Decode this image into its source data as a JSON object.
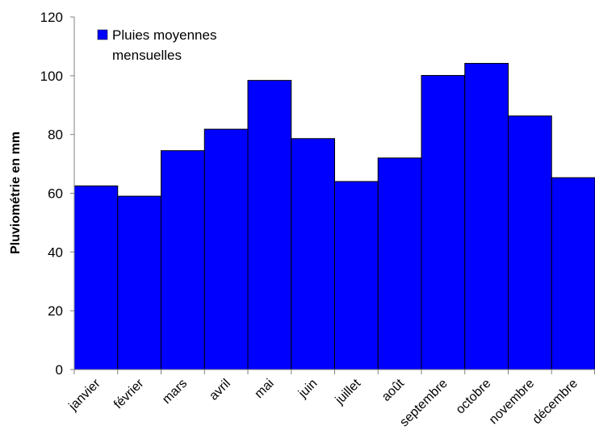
{
  "chart_data": {
    "type": "bar",
    "title": "",
    "xlabel": "",
    "ylabel": "Pluviométrie en mm",
    "ylim": [
      0,
      120
    ],
    "yticks": [
      0,
      20,
      40,
      60,
      80,
      100,
      120
    ],
    "grid": false,
    "legend_position": "top-left",
    "categories": [
      "janvier",
      "février",
      "mars",
      "avril",
      "mai",
      "juin",
      "juillet",
      "août",
      "septembre",
      "octobre",
      "novembre",
      "décembre"
    ],
    "series": [
      {
        "name": "Pluies moyennes mensuelles",
        "color": "#0000FF",
        "values": [
          62.5,
          59,
          74.5,
          81.8,
          98.4,
          78.6,
          64,
          72,
          100.1,
          104.2,
          86.3,
          65.3
        ]
      }
    ],
    "legend_lines": [
      "Pluies moyennes",
      "mensuelles"
    ]
  }
}
